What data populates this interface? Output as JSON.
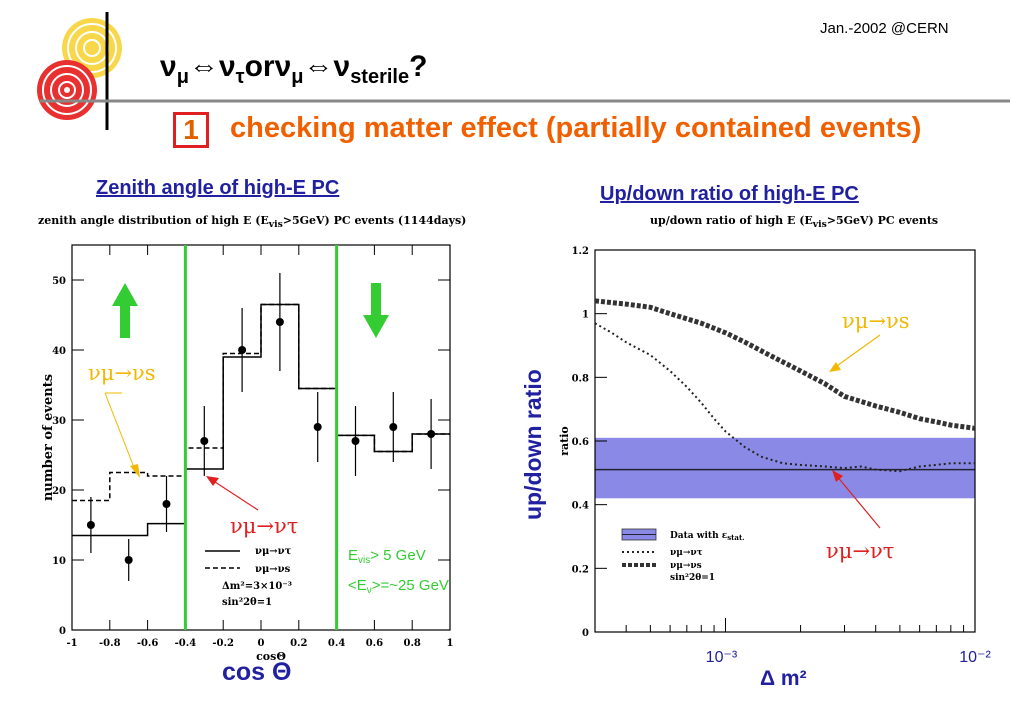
{
  "header": {
    "date": "Jan.-2002 @CERN",
    "title_parts": {
      "nu": "ν",
      "mu": "μ",
      "arrow": "⇔",
      "tau": "τ",
      "or": "or",
      "sterile": "sterile",
      "q": "?"
    },
    "number": "1",
    "subtitle": "checking matter effect (partially contained events)"
  },
  "colors": {
    "accent_orange": "#f06000",
    "title_blue": "#2020a0",
    "green": "#33cc33",
    "red": "#e02020",
    "yellow": "#f0c000",
    "band": "#8a8ae6"
  },
  "left": {
    "heading": "Zenith angle of high-E PC",
    "caption": "zenith angle distribution of high E (E",
    "caption_sub": "vis",
    "caption_end": ">5GeV) PC events (1144days)",
    "x_title": "cos Θ",
    "annot_s": "νμ→νs",
    "annot_tau": "νμ→ντ",
    "evis": "E",
    "evis_sub": "vis",
    "evis_end": "> 5 GeV",
    "enu": "<E",
    "enu_sub": "ν",
    "enu_end": ">=~25 GeV",
    "legend": [
      "νμ→ντ",
      "νμ→νs",
      "Δm²=3×10⁻³",
      "sin²2θ=1"
    ]
  },
  "right": {
    "heading": "Up/down ratio of high-E PC",
    "caption": "up/down ratio of high E (E",
    "caption_sub": "vis",
    "caption_end": ">5GeV) PC events",
    "y_title": "up/down ratio",
    "annot_s": "νμ→νs",
    "annot_tau": "νμ→ντ",
    "legend": [
      "Data with ε",
      "νμ→ντ",
      "νμ→νs",
      "sin²2θ=1"
    ],
    "legend_sub": "stat.",
    "x_title": "Δ m²"
  },
  "chart_data": [
    {
      "type": "scatter",
      "title": "zenith angle distribution of high E (Evis>5GeV) PC events (1144days)",
      "xlabel": "cosΘ",
      "ylabel": "number of events",
      "xlim": [
        -1,
        1
      ],
      "ylim": [
        0,
        55
      ],
      "x_ticks": [
        -1,
        -0.8,
        -0.6,
        -0.4,
        -0.2,
        0,
        0.2,
        0.4,
        0.6,
        0.8,
        1
      ],
      "y_ticks": [
        0,
        10,
        20,
        30,
        40,
        50
      ],
      "data_points": [
        {
          "x": -0.9,
          "y": 15,
          "err": 4
        },
        {
          "x": -0.7,
          "y": 10,
          "err": 3
        },
        {
          "x": -0.5,
          "y": 18,
          "err": 4
        },
        {
          "x": -0.3,
          "y": 27,
          "err": 5
        },
        {
          "x": -0.1,
          "y": 40,
          "err": 6
        },
        {
          "x": 0.1,
          "y": 44,
          "err": 7
        },
        {
          "x": 0.3,
          "y": 29,
          "err": 5
        },
        {
          "x": 0.5,
          "y": 27,
          "err": 5
        },
        {
          "x": 0.7,
          "y": 29,
          "err": 5
        },
        {
          "x": 0.9,
          "y": 28,
          "err": 5
        }
      ],
      "bin_edges": [
        -1,
        -0.8,
        -0.6,
        -0.4,
        -0.2,
        0,
        0.2,
        0.4,
        0.6,
        0.8,
        1
      ],
      "series": [
        {
          "name": "νμ→ντ",
          "style": "solid",
          "values": [
            13.5,
            13.5,
            15.2,
            23,
            39,
            46.5,
            34.5,
            27.8,
            25.5,
            28
          ]
        },
        {
          "name": "νμ→νs",
          "style": "dashed",
          "values": [
            18.5,
            22.5,
            22,
            26,
            39.5,
            46.5,
            34.5,
            27.8,
            25.5,
            28
          ]
        }
      ],
      "vlines": [
        -0.4,
        0.4
      ]
    },
    {
      "type": "line",
      "title": "up/down ratio of high E (Evis>5GeV) PC events",
      "ylabel": "ratio",
      "ylim": [
        0,
        1.2
      ],
      "y_ticks": [
        0,
        0.2,
        0.4,
        0.6,
        0.8,
        1,
        1.2
      ],
      "x_scale": "log",
      "xlim": [
        0.0003,
        0.01
      ],
      "x_ticks": [
        0.001,
        0.01
      ],
      "x_tick_labels": [
        "10⁻³",
        "10⁻²"
      ],
      "data_band": {
        "central": 0.51,
        "low": 0.42,
        "high": 0.61
      },
      "series": [
        {
          "name": "νμ→ντ",
          "style": "dotted",
          "x": [
            0.0003,
            0.00035,
            0.0004,
            0.0005,
            0.0006,
            0.0007,
            0.0008,
            0.0009,
            0.001,
            0.0012,
            0.0014,
            0.0017,
            0.002,
            0.0025,
            0.003,
            0.0035,
            0.004,
            0.005,
            0.006,
            0.007,
            0.008,
            0.01
          ],
          "y": [
            0.97,
            0.94,
            0.91,
            0.87,
            0.82,
            0.77,
            0.72,
            0.67,
            0.63,
            0.58,
            0.55,
            0.53,
            0.525,
            0.52,
            0.515,
            0.52,
            0.51,
            0.505,
            0.52,
            0.525,
            0.53,
            0.53
          ]
        },
        {
          "name": "νμ→νs",
          "style": "dashed-bold",
          "x": [
            0.0003,
            0.0004,
            0.0005,
            0.0006,
            0.0008,
            0.001,
            0.0012,
            0.0015,
            0.002,
            0.0025,
            0.003,
            0.004,
            0.005,
            0.006,
            0.007,
            0.008,
            0.01
          ],
          "y": [
            1.04,
            1.03,
            1.02,
            1.0,
            0.97,
            0.94,
            0.91,
            0.87,
            0.82,
            0.78,
            0.74,
            0.71,
            0.69,
            0.67,
            0.66,
            0.65,
            0.64
          ]
        }
      ]
    }
  ]
}
